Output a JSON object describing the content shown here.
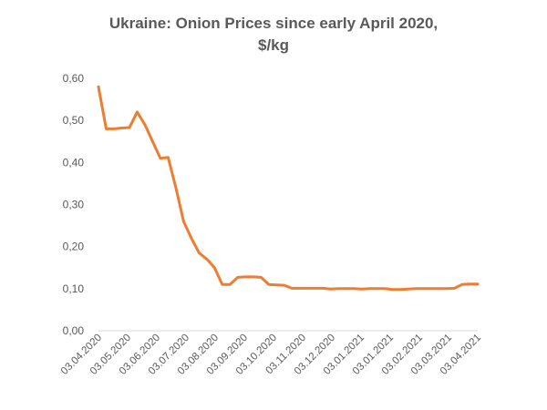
{
  "chart_data": {
    "type": "line",
    "title_line1": "Ukraine: Onion Prices since early April 2020,",
    "title_line2": "$/kg",
    "xlabel": "",
    "ylabel": "",
    "ylim": [
      0,
      0.6
    ],
    "y_ticks": [
      "0,00",
      "0,10",
      "0,20",
      "0,30",
      "0,40",
      "0,50",
      "0,60"
    ],
    "x_ticks": [
      "03.04.2020",
      "03.05.2020",
      "03.06.2020",
      "03.07.2020",
      "03.08.2020",
      "03.09.2020",
      "03.10.2020",
      "03.11.2020",
      "03.12.2020",
      "03.01.2021",
      "03.01.2021",
      "03.02.2021",
      "03.03.2021",
      "03.04.2021"
    ],
    "grid": false,
    "legend": "none",
    "series": [
      {
        "color": "#ED7D31",
        "x": [
          "03.04.2020",
          "10.04.2020",
          "17.04.2020",
          "24.04.2020",
          "03.05.2020",
          "10.05.2020",
          "17.05.2020",
          "24.05.2020",
          "03.06.2020",
          "10.06.2020",
          "17.06.2020",
          "24.06.2020",
          "03.07.2020",
          "10.07.2020",
          "17.07.2020",
          "24.07.2020",
          "03.08.2020",
          "10.08.2020",
          "17.08.2020",
          "24.08.2020",
          "03.09.2020",
          "10.09.2020",
          "17.09.2020",
          "24.09.2020",
          "03.10.2020",
          "10.10.2020",
          "17.10.2020",
          "24.10.2020",
          "03.11.2020",
          "10.11.2020",
          "17.11.2020",
          "24.11.2020",
          "03.12.2020",
          "10.12.2020",
          "17.12.2020",
          "24.12.2020",
          "03.01.2021",
          "10.01.2021",
          "17.01.2021",
          "24.01.2021",
          "03.02.2021",
          "10.02.2021",
          "17.02.2021",
          "24.02.2021",
          "03.03.2021",
          "10.03.2021",
          "17.03.2021",
          "24.03.2021",
          "03.04.2021",
          "10.04.2021"
        ],
        "values": [
          0.58,
          0.48,
          0.48,
          0.482,
          0.483,
          0.52,
          0.49,
          0.45,
          0.41,
          0.412,
          0.34,
          0.26,
          0.22,
          0.185,
          0.17,
          0.15,
          0.11,
          0.11,
          0.127,
          0.128,
          0.128,
          0.127,
          0.11,
          0.109,
          0.108,
          0.101,
          0.101,
          0.101,
          0.101,
          0.101,
          0.099,
          0.1,
          0.1,
          0.1,
          0.099,
          0.1,
          0.1,
          0.1,
          0.098,
          0.098,
          0.099,
          0.1,
          0.1,
          0.1,
          0.1,
          0.1,
          0.101,
          0.11,
          0.111,
          0.111
        ]
      }
    ]
  }
}
